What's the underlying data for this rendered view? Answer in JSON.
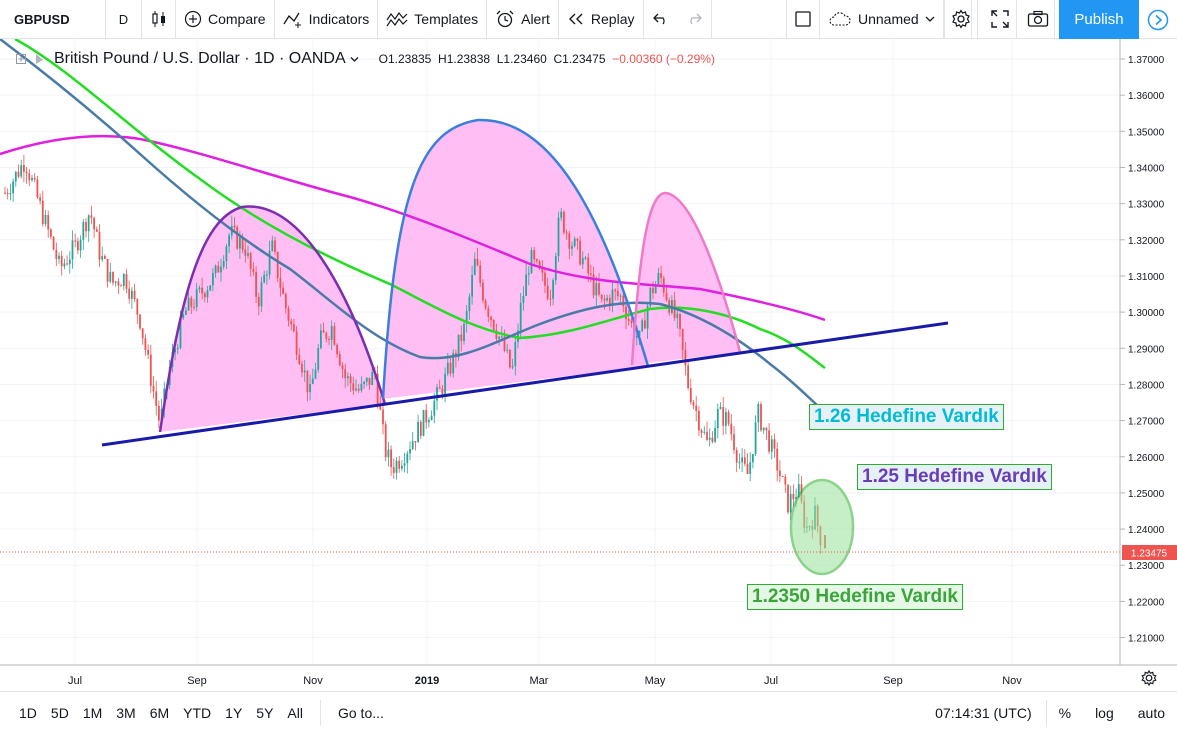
{
  "toolbar": {
    "symbol": "GBPUSD",
    "interval": "D",
    "compare": "Compare",
    "indicators": "Indicators",
    "templates": "Templates",
    "alert": "Alert",
    "replay": "Replay",
    "layout_name": "Unnamed",
    "publish": "Publish"
  },
  "legend": {
    "title": "British Pound / U.S. Dollar · 1D · OANDA",
    "open": "O1.23835",
    "high": "H1.23838",
    "low": "L1.23460",
    "close": "C1.23475",
    "change": "−0.00360 (−0.29%)"
  },
  "price_scale": {
    "labels": [
      "1.37000",
      "1.36000",
      "1.35000",
      "1.34000",
      "1.33000",
      "1.32000",
      "1.31000",
      "1.30000",
      "1.29000",
      "1.28000",
      "1.27000",
      "1.26000",
      "1.25000",
      "1.24000",
      "1.23000",
      "1.22000",
      "1.21000"
    ],
    "current_price": "1.23475"
  },
  "time_scale": {
    "labels": [
      "Jul",
      "Sep",
      "Nov",
      "2019",
      "Mar",
      "May",
      "Jul",
      "Sep",
      "Nov"
    ]
  },
  "annotations": {
    "target_126": "1.26 Hedefine Vardık",
    "target_125": "1.25 Hedefine Vardık",
    "target_12350": "1.2350 Hedefine Vardık"
  },
  "bottombar": {
    "ranges": [
      "1D",
      "5D",
      "1M",
      "3M",
      "6M",
      "YTD",
      "1Y",
      "5Y",
      "All"
    ],
    "goto": "Go to...",
    "time": "07:14:31 (UTC)",
    "percent": "%",
    "log": "log",
    "auto": "auto"
  },
  "colors": {
    "up": "#26a69a",
    "down": "#ef5350",
    "ma_magenta": "#e020e0",
    "ma_green": "#22dd22",
    "ma_steel": "#4a7ba6",
    "trendline": "#1a1aaa",
    "accent": "#2196f3"
  },
  "chart_data": {
    "type": "candlestick",
    "symbol": "GBPUSD",
    "interval": "1D",
    "ylim": [
      1.2,
      1.375
    ],
    "last_close": 1.23475
  }
}
